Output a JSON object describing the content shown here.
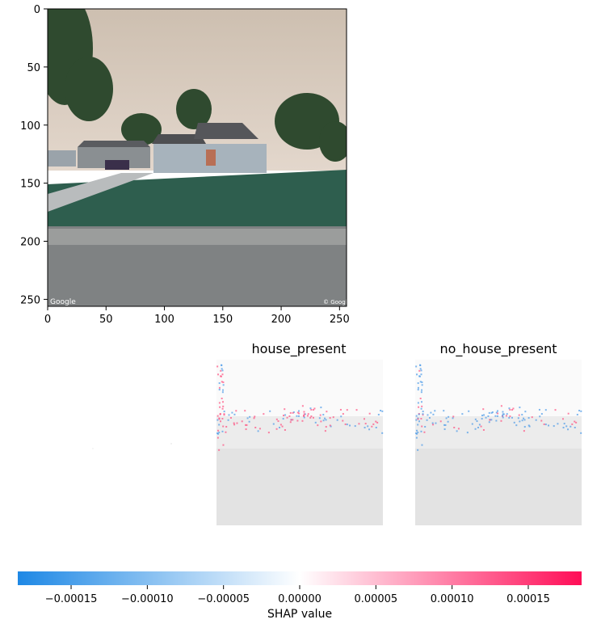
{
  "chart_data": [
    {
      "type": "image",
      "description_of_content": "street-view photo",
      "xlim": [
        0,
        256
      ],
      "ylim": [
        256,
        0
      ],
      "xticks": [
        "0",
        "50",
        "100",
        "150",
        "200",
        "250"
      ],
      "yticks": [
        "0",
        "50",
        "100",
        "150",
        "200",
        "250"
      ],
      "watermarks": [
        "Google",
        "© Google"
      ]
    },
    {
      "type": "heatmap",
      "title": "house_present",
      "overlay": "SHAP value map over grayscale image"
    },
    {
      "type": "heatmap",
      "title": "no_house_present",
      "overlay": "SHAP value map over grayscale image"
    },
    {
      "type": "colorbar",
      "label": "SHAP value",
      "range": [
        -0.000185,
        0.000185
      ],
      "ticks": [
        "−0.00015",
        "−0.00010",
        "−0.00005",
        "0.00000",
        "0.00005",
        "0.00010",
        "0.00015"
      ],
      "colors": {
        "negative": "#1e88e5",
        "zero": "#ffffff",
        "positive": "#ff0d57"
      }
    }
  ]
}
